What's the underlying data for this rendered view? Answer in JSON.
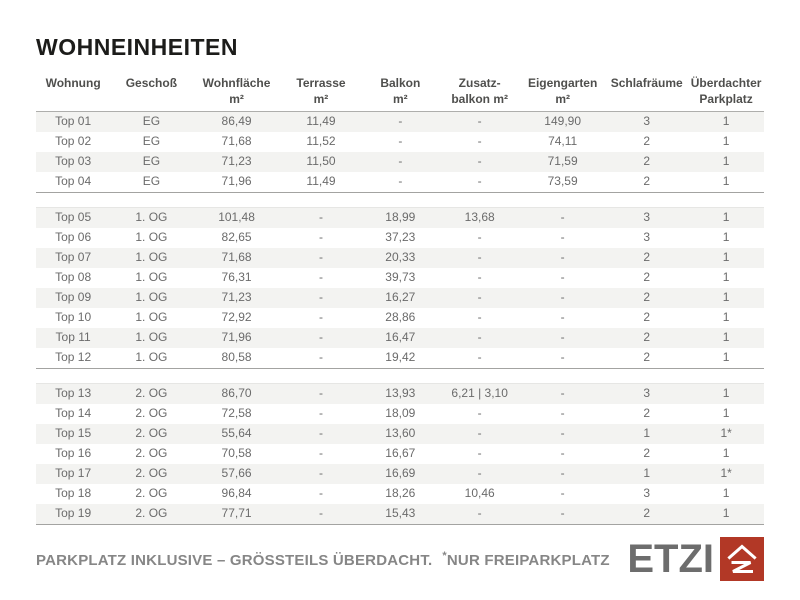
{
  "title": "WOHNEINHEITEN",
  "table": {
    "columns": [
      {
        "label": "Wohnung",
        "unit": ""
      },
      {
        "label": "Geschoß",
        "unit": ""
      },
      {
        "label": "Wohnfläche",
        "unit": "m²"
      },
      {
        "label": "Terrasse",
        "unit": "m²"
      },
      {
        "label": "Balkon",
        "unit": "m²"
      },
      {
        "label": "Zusatz-",
        "unit": "balkon m²"
      },
      {
        "label": "Eigengarten",
        "unit": "m²"
      },
      {
        "label": "Schlafräume",
        "unit": ""
      },
      {
        "label": "Überdachter",
        "unit": "Parkplatz"
      }
    ],
    "groups": [
      {
        "name": "EG",
        "rows": [
          [
            "Top 01",
            "EG",
            "86,49",
            "11,49",
            "-",
            "-",
            "149,90",
            "3",
            "1"
          ],
          [
            "Top 02",
            "EG",
            "71,68",
            "11,52",
            "-",
            "-",
            "74,11",
            "2",
            "1"
          ],
          [
            "Top 03",
            "EG",
            "71,23",
            "11,50",
            "-",
            "-",
            "71,59",
            "2",
            "1"
          ],
          [
            "Top 04",
            "EG",
            "71,96",
            "11,49",
            "-",
            "-",
            "73,59",
            "2",
            "1"
          ]
        ]
      },
      {
        "name": "1. OG",
        "rows": [
          [
            "Top 05",
            "1. OG",
            "101,48",
            "-",
            "18,99",
            "13,68",
            "-",
            "3",
            "1"
          ],
          [
            "Top 06",
            "1. OG",
            "82,65",
            "-",
            "37,23",
            "-",
            "-",
            "3",
            "1"
          ],
          [
            "Top 07",
            "1. OG",
            "71,68",
            "-",
            "20,33",
            "-",
            "-",
            "2",
            "1"
          ],
          [
            "Top 08",
            "1. OG",
            "76,31",
            "-",
            "39,73",
            "-",
            "-",
            "2",
            "1"
          ],
          [
            "Top 09",
            "1. OG",
            "71,23",
            "-",
            "16,27",
            "-",
            "-",
            "2",
            "1"
          ],
          [
            "Top 10",
            "1. OG",
            "72,92",
            "-",
            "28,86",
            "-",
            "-",
            "2",
            "1"
          ],
          [
            "Top 11",
            "1. OG",
            "71,96",
            "-",
            "16,47",
            "-",
            "-",
            "2",
            "1"
          ],
          [
            "Top 12",
            "1. OG",
            "80,58",
            "-",
            "19,42",
            "-",
            "-",
            "2",
            "1"
          ]
        ]
      },
      {
        "name": "2. OG",
        "rows": [
          [
            "Top 13",
            "2. OG",
            "86,70",
            "-",
            "13,93",
            "6,21 | 3,10",
            "-",
            "3",
            "1"
          ],
          [
            "Top 14",
            "2. OG",
            "72,58",
            "-",
            "18,09",
            "-",
            "-",
            "2",
            "1"
          ],
          [
            "Top 15",
            "2. OG",
            "55,64",
            "-",
            "13,60",
            "-",
            "-",
            "1",
            "1*"
          ],
          [
            "Top 16",
            "2. OG",
            "70,58",
            "-",
            "16,67",
            "-",
            "-",
            "2",
            "1"
          ],
          [
            "Top 17",
            "2. OG",
            "57,66",
            "-",
            "16,69",
            "-",
            "-",
            "1",
            "1*"
          ],
          [
            "Top 18",
            "2. OG",
            "96,84",
            "-",
            "18,26",
            "10,46",
            "-",
            "3",
            "1"
          ],
          [
            "Top 19",
            "2. OG",
            "77,71",
            "-",
            "15,43",
            "-",
            "-",
            "2",
            "1"
          ]
        ]
      }
    ]
  },
  "footer": {
    "note": "PARKPLATZ INKLUSIVE – GRÖSSTEILS ÜBERDACHT.",
    "star": "*",
    "star_note": "NUR FREIPARKPLATZ",
    "logo_text": "ETZI",
    "logo_color": "#b23826"
  }
}
